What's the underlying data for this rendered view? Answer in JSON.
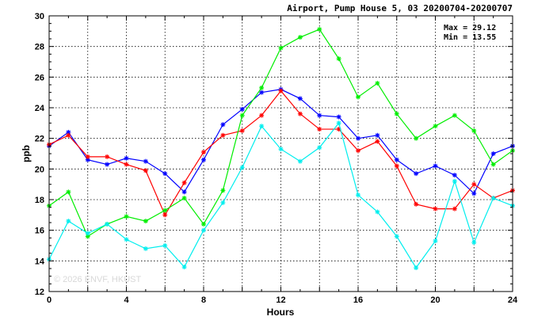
{
  "chart_data": {
    "type": "line",
    "title": "Airport, Pump House 5, 03 20200704-20200707",
    "xlabel": "Hours",
    "ylabel": "ppb",
    "xlim": [
      0,
      24
    ],
    "ylim": [
      12,
      30
    ],
    "xticks": [
      0,
      4,
      8,
      12,
      16,
      20,
      24
    ],
    "yticks": [
      12,
      14,
      16,
      18,
      20,
      22,
      24,
      26,
      28,
      30
    ],
    "grid": true,
    "annotations": [
      "Max = 29.12",
      "Min = 13.55"
    ],
    "watermark": "© 2026 ENVF, HKUST",
    "x": [
      0,
      1,
      2,
      3,
      4,
      5,
      6,
      7,
      8,
      9,
      10,
      11,
      12,
      13,
      14,
      15,
      16,
      17,
      18,
      19,
      20,
      21,
      22,
      23,
      24
    ],
    "series": [
      {
        "color": "#0000ff",
        "values": [
          21.5,
          22.4,
          20.6,
          20.3,
          20.7,
          20.5,
          19.7,
          18.5,
          20.6,
          22.9,
          23.9,
          25.0,
          25.2,
          24.6,
          23.5,
          23.4,
          22.0,
          22.2,
          20.6,
          19.7,
          20.2,
          19.6,
          18.4,
          21.0,
          21.5
        ]
      },
      {
        "color": "#ff0000",
        "values": [
          21.6,
          22.2,
          20.8,
          20.8,
          20.3,
          19.9,
          17.0,
          19.1,
          21.1,
          22.2,
          22.5,
          23.5,
          25.1,
          23.6,
          22.6,
          22.6,
          21.2,
          21.8,
          20.2,
          17.7,
          17.4,
          17.4,
          19.0,
          18.1,
          18.6
        ]
      },
      {
        "color": "#00ee00",
        "values": [
          17.6,
          18.5,
          15.6,
          16.4,
          16.9,
          16.6,
          17.3,
          18.1,
          16.4,
          18.6,
          23.5,
          25.3,
          27.9,
          28.6,
          29.12,
          27.2,
          24.7,
          25.6,
          23.6,
          22.0,
          22.8,
          23.5,
          22.5,
          20.3,
          21.2
        ]
      },
      {
        "color": "#00eeee",
        "values": [
          14.1,
          16.6,
          15.8,
          16.4,
          15.4,
          14.8,
          15.0,
          13.6,
          16.0,
          17.8,
          20.1,
          22.8,
          21.3,
          20.5,
          21.4,
          23.0,
          18.3,
          17.2,
          15.6,
          13.55,
          15.3,
          19.2,
          15.2,
          18.1,
          17.6
        ]
      }
    ]
  }
}
